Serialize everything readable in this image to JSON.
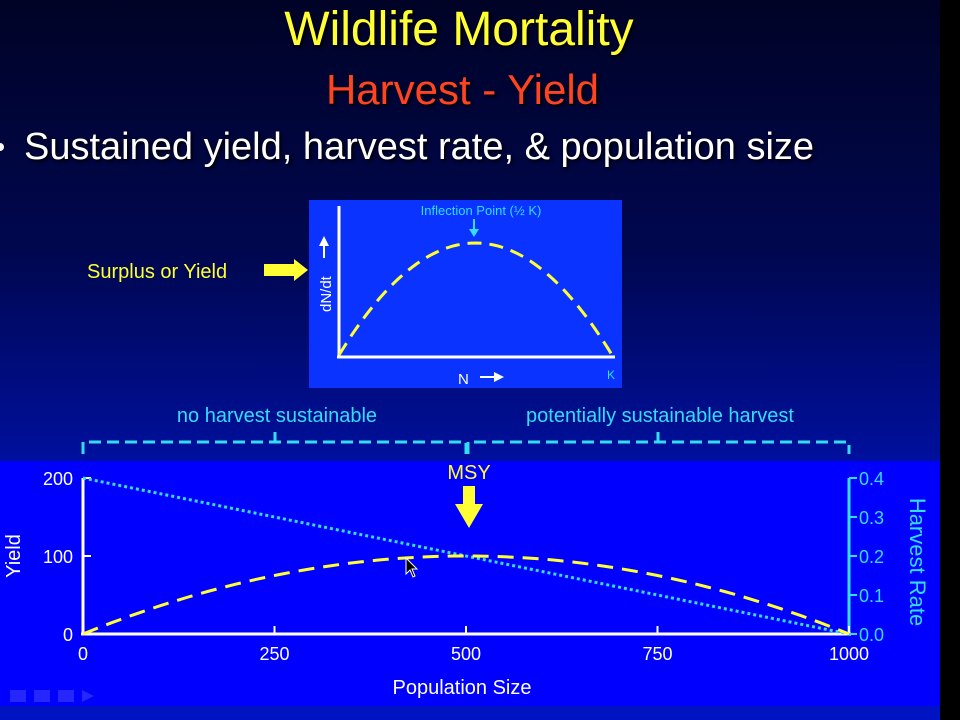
{
  "slide": {
    "title": "Wildlife Mortality",
    "subtitle": "Harvest - Yield",
    "bullet": "Sustained yield, harvest rate, & population size"
  },
  "inset": {
    "ylabel": "dN/dt",
    "xlabel": "N",
    "k_label": "K",
    "inflection_label": "Inflection Point (½ K)",
    "callout": "Surplus or Yield"
  },
  "brackets": {
    "left_label": "no harvest sustainable",
    "right_label": "potentially sustainable harvest"
  },
  "colors": {
    "yield_curve": "#ffff33",
    "harvest_line": "#33ddff",
    "title": "#ffff33",
    "subtitle": "#ff4422",
    "bracket": "#33ddff"
  },
  "chart_data": [
    {
      "type": "line",
      "title": "",
      "xlabel": "N",
      "ylabel": "dN/dt",
      "annotations": [
        "Inflection Point (½ K)",
        "K"
      ],
      "series": [
        {
          "x": [
            0,
            0.125,
            0.25,
            0.375,
            0.5,
            0.625,
            0.75,
            0.875,
            1.0
          ],
          "values": [
            0,
            0.44,
            0.75,
            0.94,
            1.0,
            0.94,
            0.75,
            0.44,
            0
          ]
        }
      ]
    },
    {
      "type": "line",
      "title": "",
      "xlabel": "Population Size",
      "ylabel": "Yield",
      "y2label": "Harvest Rate",
      "xlim": [
        0,
        1000
      ],
      "ylim": [
        0,
        200
      ],
      "y2lim": [
        0,
        0.4
      ],
      "xticks": [
        "0",
        "250",
        "500",
        "750",
        "1000"
      ],
      "yticks": [
        "0",
        "100",
        "200"
      ],
      "y2ticks": [
        "0.0",
        "0.1",
        "0.2",
        "0.3",
        "0.4"
      ],
      "annotations": [
        "MSY"
      ],
      "series": [
        {
          "x": [
            0,
            125,
            250,
            375,
            500,
            625,
            750,
            875,
            1000
          ],
          "values": [
            0,
            43.75,
            75,
            93.75,
            100,
            93.75,
            75,
            43.75,
            0
          ]
        },
        {
          "x": [
            0,
            1000
          ],
          "values": [
            0.4,
            0.0
          ]
        }
      ]
    }
  ]
}
